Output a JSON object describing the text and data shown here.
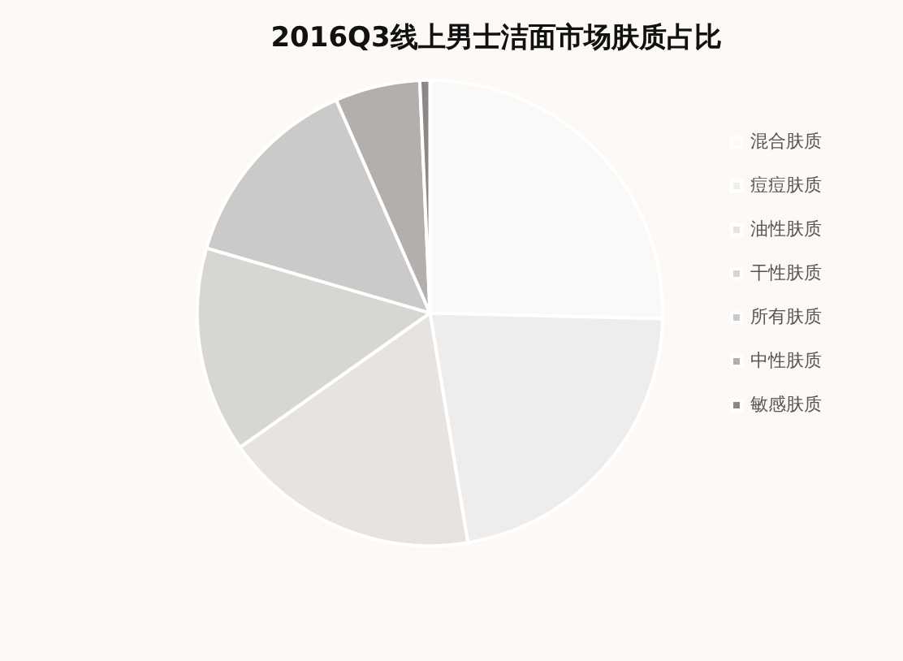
{
  "chart_data": {
    "type": "pie",
    "title": "2016Q3线上男士洁面市场肤质占比",
    "categories": [
      "混合肤质",
      "痘痘肤质",
      "油性肤质",
      "干性肤质",
      "所有肤质",
      "中性肤质",
      "敏感肤质"
    ],
    "values": [
      25.4,
      22,
      17.8,
      14.3,
      13.9,
      5.9,
      0.7
    ],
    "colors": [
      "#fbf8f8",
      "#efecec",
      "#e6e3e1",
      "#d8d6d3",
      "#cccac8",
      "#b3afad",
      "#8c8888"
    ],
    "legend": "right"
  }
}
